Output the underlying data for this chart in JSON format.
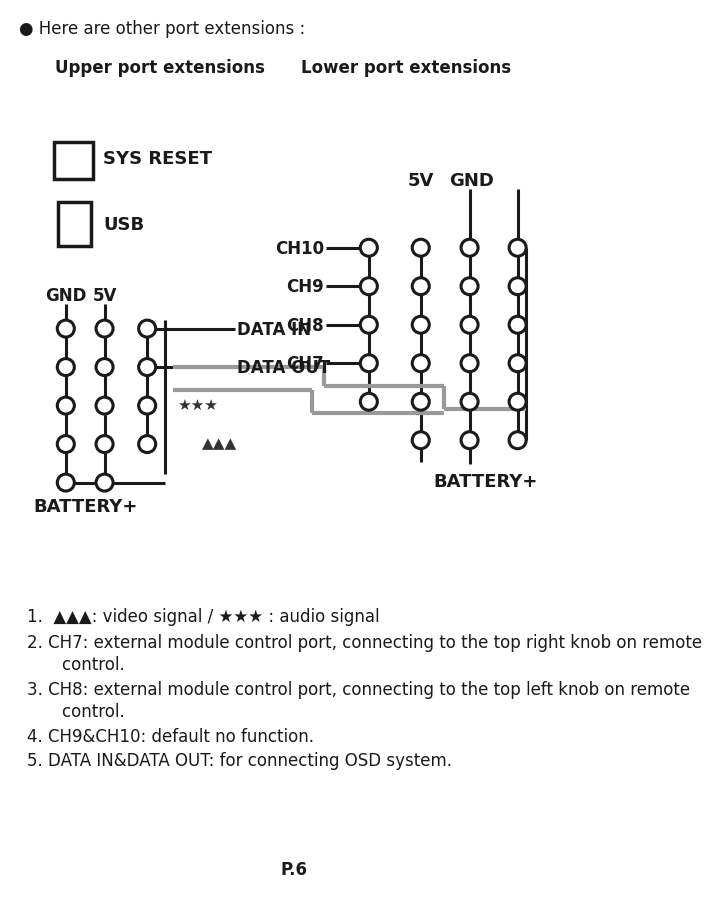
{
  "title_text": "● Here are other port extensions :",
  "upper_label": "Upper port extensions",
  "lower_label": "Lower port extensions",
  "page_label": "P.6",
  "bg_color": "#ffffff",
  "text_color": "#1a1a1a",
  "gray_color": "#999999",
  "line_color": "#1a1a1a",
  "note1": "1.  ▲▲▲: video signal / ★★★ : audio signal",
  "note2a": "2. CH7: external module control port, connecting to the top right knob on remote",
  "note2b": "    control.",
  "note3a": "3. CH8: external module control port, connecting to the top left knob on remote",
  "note3b": "    control.",
  "note4": "4. CH9&CH10: default no function.",
  "note5": "5. DATA IN&DATA OUT: for connecting OSD system."
}
